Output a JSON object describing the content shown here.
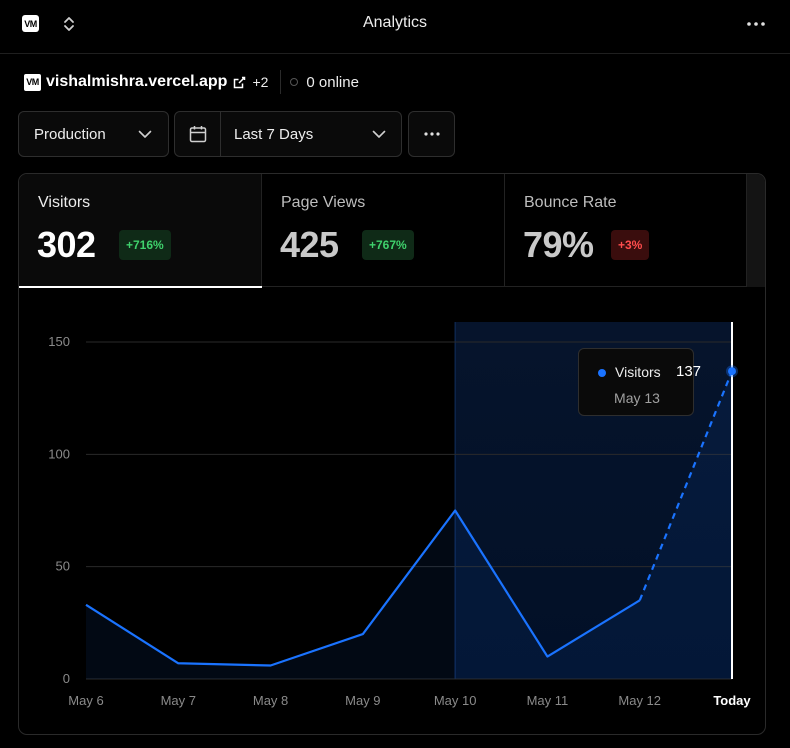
{
  "header": {
    "logo_text": "VM",
    "title": "Analytics"
  },
  "site": {
    "logo_text": "VM",
    "domain": "vishalmishra.vercel.app",
    "extra_count": "+2",
    "online_text": "0 online"
  },
  "controls": {
    "environment": "Production",
    "date_range": "Last 7 Days"
  },
  "metrics": [
    {
      "label": "Visitors",
      "value": "302",
      "change": "+716%"
    },
    {
      "label": "Page Views",
      "value": "425",
      "change": "+767%"
    },
    {
      "label": "Bounce Rate",
      "value": "79%",
      "change": "+3%"
    }
  ],
  "colors": {
    "accent": "#1a73ff",
    "positive": "#3fd16c",
    "negative": "#ff4d4d"
  },
  "chart_data": {
    "type": "line",
    "categories": [
      "May 6",
      "May 7",
      "May 8",
      "May 9",
      "May 10",
      "May 11",
      "May 12",
      "Today"
    ],
    "series": [
      {
        "name": "Visitors",
        "values": [
          33,
          7,
          6,
          20,
          75,
          10,
          35,
          137
        ]
      }
    ],
    "y_ticks": [
      0,
      50,
      100,
      150
    ],
    "ylim": [
      0,
      160
    ],
    "grid": true,
    "highlight_range": [
      "May 10",
      "Today"
    ],
    "projected_from": "May 12",
    "tooltip": {
      "series": "Visitors",
      "value": "137",
      "date": "May 13"
    }
  }
}
